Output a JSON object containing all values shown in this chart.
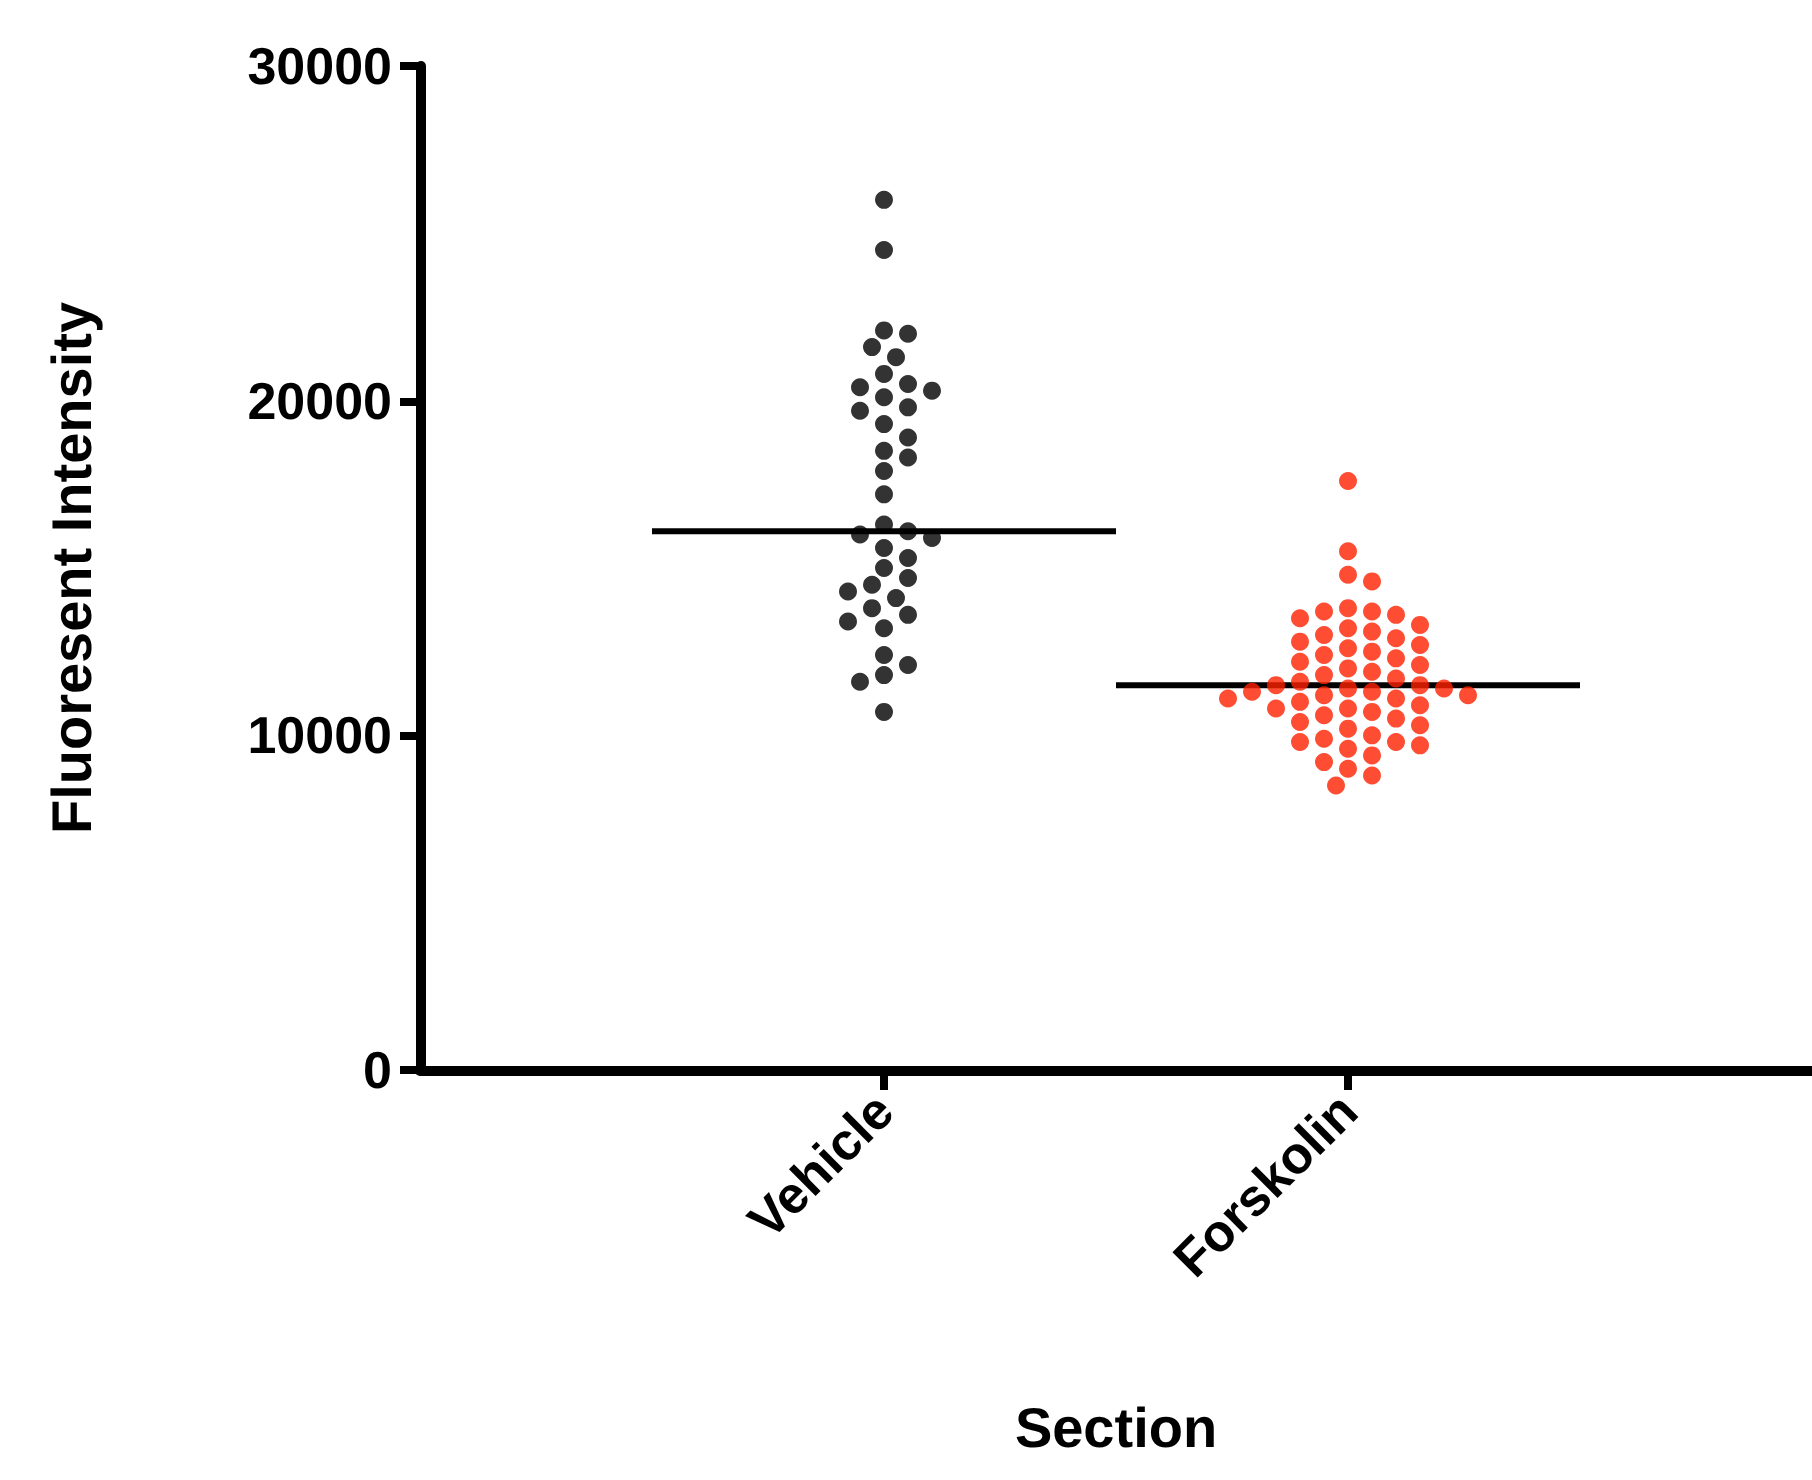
{
  "chart_data": {
    "type": "scatter",
    "xlabel": "Section",
    "ylabel": "Fluoresent Intensity",
    "categories": [
      "Vehicle",
      "Forskolin"
    ],
    "ylim": [
      0,
      30000
    ],
    "yticks": [
      0,
      10000,
      20000,
      30000
    ],
    "grid": false,
    "marker": "circle",
    "series": [
      {
        "color": "#000000",
        "x": [
          "Vehicle",
          "Vehicle",
          "Vehicle",
          "Vehicle",
          "Vehicle",
          "Vehicle",
          "Vehicle",
          "Vehicle",
          "Vehicle",
          "Vehicle",
          "Vehicle",
          "Vehicle",
          "Vehicle",
          "Vehicle",
          "Vehicle",
          "Vehicle",
          "Vehicle",
          "Vehicle",
          "Vehicle",
          "Vehicle",
          "Vehicle",
          "Vehicle",
          "Vehicle",
          "Vehicle",
          "Vehicle",
          "Vehicle",
          "Vehicle",
          "Vehicle",
          "Vehicle",
          "Vehicle",
          "Vehicle",
          "Vehicle",
          "Vehicle",
          "Vehicle",
          "Vehicle",
          "Vehicle",
          "Vehicle",
          "Vehicle",
          "Vehicle"
        ],
        "values": [
          26000,
          24500,
          22100,
          22000,
          21600,
          21300,
          20800,
          20500,
          20400,
          20300,
          20100,
          19800,
          19700,
          19300,
          18900,
          18500,
          18300,
          17900,
          17200,
          16300,
          16100,
          16000,
          15900,
          15600,
          15300,
          15000,
          14700,
          14500,
          14300,
          14100,
          13800,
          13600,
          13400,
          13200,
          12400,
          12100,
          11800,
          11600,
          10700
        ]
      },
      {
        "color": "#ff2000",
        "x": [
          "Forskolin",
          "Forskolin",
          "Forskolin",
          "Forskolin",
          "Forskolin",
          "Forskolin",
          "Forskolin",
          "Forskolin",
          "Forskolin",
          "Forskolin",
          "Forskolin",
          "Forskolin",
          "Forskolin",
          "Forskolin",
          "Forskolin",
          "Forskolin",
          "Forskolin",
          "Forskolin",
          "Forskolin",
          "Forskolin",
          "Forskolin",
          "Forskolin",
          "Forskolin",
          "Forskolin",
          "Forskolin",
          "Forskolin",
          "Forskolin",
          "Forskolin",
          "Forskolin",
          "Forskolin",
          "Forskolin",
          "Forskolin",
          "Forskolin",
          "Forskolin",
          "Forskolin",
          "Forskolin",
          "Forskolin",
          "Forskolin",
          "Forskolin",
          "Forskolin",
          "Forskolin",
          "Forskolin",
          "Forskolin",
          "Forskolin",
          "Forskolin",
          "Forskolin",
          "Forskolin",
          "Forskolin",
          "Forskolin",
          "Forskolin",
          "Forskolin",
          "Forskolin",
          "Forskolin",
          "Forskolin",
          "Forskolin",
          "Forskolin",
          "Forskolin",
          "Forskolin"
        ],
        "values": [
          17600,
          15500,
          14800,
          14600,
          13800,
          13700,
          13700,
          13600,
          13500,
          13300,
          13200,
          13100,
          13000,
          12900,
          12800,
          12700,
          12600,
          12500,
          12400,
          12300,
          12200,
          12100,
          12000,
          11900,
          11800,
          11700,
          11600,
          11500,
          11500,
          11400,
          11400,
          11300,
          11300,
          11200,
          11200,
          11100,
          11100,
          11000,
          10900,
          10800,
          10800,
          10700,
          10600,
          10500,
          10400,
          10300,
          10200,
          10000,
          9900,
          9800,
          9800,
          9700,
          9600,
          9400,
          9200,
          9000,
          8800,
          8500
        ]
      }
    ],
    "ref_lines": [
      {
        "axis": "y",
        "value": 16100,
        "color": "#000000"
      },
      {
        "axis": "y",
        "value": 11500,
        "color": "#000000"
      }
    ]
  }
}
